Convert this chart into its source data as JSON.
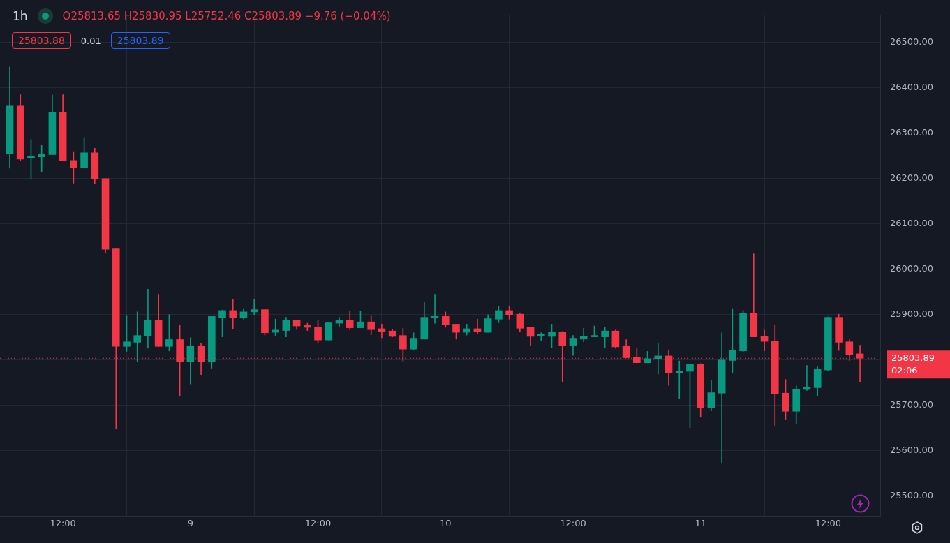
{
  "chart_data": {
    "type": "candlestick",
    "title": "1h",
    "subtitle": "O25813.65 H25830.95 L25752.46 C25803.89 −9.76 (−0.04%)",
    "annotations": [
      "25803.88",
      "0.01",
      "25803.89",
      "02:06"
    ],
    "categories": [
      null,
      null,
      null,
      null,
      null,
      "12:00",
      null,
      null,
      null,
      null,
      null,
      null,
      null,
      null,
      null,
      null,
      null,
      "9",
      null,
      null,
      null,
      null,
      null,
      null,
      null,
      null,
      null,
      null,
      null,
      "12:00",
      null,
      null,
      null,
      null,
      null,
      null,
      null,
      null,
      null,
      null,
      null,
      "10",
      null,
      null,
      null,
      null,
      null,
      null,
      null,
      null,
      null,
      null,
      null,
      "12:00",
      null,
      null,
      null,
      null,
      null,
      null,
      null,
      null,
      null,
      null,
      null,
      "11",
      null,
      null,
      null,
      null,
      null,
      null,
      null,
      null,
      null,
      null,
      null,
      "12:00",
      null,
      null,
      null
    ],
    "ohlc": [
      [
        26254,
        26446,
        26223,
        26360
      ],
      [
        26360,
        26385,
        26239,
        26243
      ],
      [
        26245,
        26286,
        26199,
        26249
      ],
      [
        26248,
        26273,
        26215,
        26254
      ],
      [
        26253,
        26384,
        26253,
        26346
      ],
      [
        26346,
        26385,
        26239,
        26239
      ],
      [
        26240,
        26258,
        26190,
        26224
      ],
      [
        26224,
        26289,
        26224,
        26257
      ],
      [
        26257,
        26267,
        26189,
        26199
      ],
      [
        26200,
        26200,
        26037,
        26044
      ],
      [
        26045,
        26045,
        25649,
        25830
      ],
      [
        25830,
        25897,
        25819,
        25840
      ],
      [
        25839,
        25906,
        25796,
        25854
      ],
      [
        25853,
        25956,
        25826,
        25888
      ],
      [
        25888,
        25945,
        25830,
        25830
      ],
      [
        25830,
        25900,
        25820,
        25845
      ],
      [
        25845,
        25877,
        25721,
        25796
      ],
      [
        25796,
        25849,
        25747,
        25830
      ],
      [
        25830,
        25836,
        25767,
        25797
      ],
      [
        25797,
        25896,
        25782,
        25896
      ],
      [
        25894,
        25910,
        25851,
        25909
      ],
      [
        25909,
        25933,
        25869,
        25893
      ],
      [
        25893,
        25912,
        25890,
        25906
      ],
      [
        25906,
        25934,
        25899,
        25911
      ],
      [
        25911,
        25911,
        25855,
        25860
      ],
      [
        25861,
        25890,
        25853,
        25866
      ],
      [
        25865,
        25894,
        25851,
        25888
      ],
      [
        25888,
        25888,
        25867,
        25875
      ],
      [
        25876,
        25881,
        25865,
        25872
      ],
      [
        25873,
        25888,
        25837,
        25844
      ],
      [
        25844,
        25882,
        25844,
        25882
      ],
      [
        25881,
        25894,
        25874,
        25887
      ],
      [
        25887,
        25907,
        25867,
        25871
      ],
      [
        25871,
        25907,
        25871,
        25884
      ],
      [
        25884,
        25897,
        25856,
        25867
      ],
      [
        25869,
        25879,
        25849,
        25863
      ],
      [
        25864,
        25867,
        25851,
        25852
      ],
      [
        25854,
        25870,
        25798,
        25824
      ],
      [
        25824,
        25860,
        25822,
        25848
      ],
      [
        25846,
        25928,
        25846,
        25894
      ],
      [
        25893,
        25945,
        25881,
        25896
      ],
      [
        25896,
        25906,
        25872,
        25878
      ],
      [
        25879,
        25879,
        25846,
        25861
      ],
      [
        25861,
        25879,
        25855,
        25869
      ],
      [
        25869,
        25890,
        25858,
        25863
      ],
      [
        25861,
        25900,
        25861,
        25891
      ],
      [
        25890,
        25919,
        25882,
        25909
      ],
      [
        25909,
        25918,
        25890,
        25900
      ],
      [
        25901,
        25903,
        25863,
        25870
      ],
      [
        25872,
        25872,
        25831,
        25852
      ],
      [
        25853,
        25860,
        25843,
        25854
      ],
      [
        25852,
        25879,
        25827,
        25861
      ],
      [
        25861,
        25863,
        25751,
        25831
      ],
      [
        25831,
        25854,
        25810,
        25848
      ],
      [
        25846,
        25870,
        25840,
        25852
      ],
      [
        25851,
        25875,
        25851,
        25852
      ],
      [
        25851,
        25873,
        25827,
        25864
      ],
      [
        25864,
        25866,
        25826,
        25829
      ],
      [
        25830,
        25845,
        25805,
        25805
      ],
      [
        25806,
        25825,
        25794,
        25794
      ],
      [
        25794,
        25819,
        25794,
        25803
      ],
      [
        25802,
        25836,
        25769,
        25809
      ],
      [
        25809,
        25822,
        25744,
        25772
      ],
      [
        25772,
        25798,
        25714,
        25776
      ],
      [
        25775,
        25791,
        25651,
        25791
      ],
      [
        25791,
        25792,
        25674,
        25694
      ],
      [
        25694,
        25755,
        25688,
        25728
      ],
      [
        25727,
        25860,
        25572,
        25800
      ],
      [
        25799,
        25912,
        25772,
        25821
      ],
      [
        25820,
        25909,
        25817,
        25903
      ],
      [
        25903,
        26034,
        25851,
        25851
      ],
      [
        25852,
        25866,
        25820,
        25841
      ],
      [
        25842,
        25878,
        25654,
        25726
      ],
      [
        25727,
        25757,
        25668,
        25687
      ],
      [
        25687,
        25743,
        25660,
        25736
      ],
      [
        25735,
        25788,
        25733,
        25740
      ],
      [
        25739,
        25785,
        25721,
        25779
      ],
      [
        25778,
        25895,
        25777,
        25894
      ],
      [
        25894,
        25901,
        25821,
        25839
      ],
      [
        25840,
        25845,
        25799,
        25812
      ],
      [
        25813.65,
        25830.95,
        25752.46,
        25803.89
      ]
    ],
    "colors": [
      "#089981",
      "#f23645",
      "#089981",
      "#089981",
      "#089981",
      "#f23645",
      "#f23645",
      "#089981",
      "#f23645",
      "#f23645",
      "#f23645",
      "#089981",
      "#089981",
      "#089981",
      "#f23645",
      "#089981",
      "#f23645",
      "#089981",
      "#f23645",
      "#089981",
      "#089981",
      "#f23645",
      "#089981",
      "#089981",
      "#f23645",
      "#089981",
      "#089981",
      "#f23645",
      "#f23645",
      "#f23645",
      "#089981",
      "#089981",
      "#f23645",
      "#089981",
      "#f23645",
      "#f23645",
      "#f23645",
      "#f23645",
      "#089981",
      "#089981",
      "#089981",
      "#f23645",
      "#f23645",
      "#089981",
      "#f23645",
      "#089981",
      "#089981",
      "#f23645",
      "#f23645",
      "#f23645",
      "#089981",
      "#089981",
      "#f23645",
      "#089981",
      "#089981",
      "#089981",
      "#089981",
      "#f23645",
      "#f23645",
      "#f23645",
      "#089981",
      "#089981",
      "#f23645",
      "#089981",
      "#089981",
      "#f23645",
      "#089981",
      "#089981",
      "#089981",
      "#089981",
      "#f23645",
      "#f23645",
      "#f23645",
      "#f23645",
      "#089981",
      "#089981",
      "#089981",
      "#089981",
      "#f23645",
      "#f23645",
      "#f23645"
    ],
    "ylim": [
      25455,
      26560
    ],
    "yticks": [
      {
        "value": 25500,
        "label": "25500.00"
      },
      {
        "value": 25600,
        "label": "25600.00"
      },
      {
        "value": 25700,
        "label": "25700.00"
      },
      {
        "value": 25800,
        "label": null
      },
      {
        "value": 25900,
        "label": "25900.00"
      },
      {
        "value": 26000,
        "label": "26000.00"
      },
      {
        "value": 26100,
        "label": "26100.00"
      },
      {
        "value": 26200,
        "label": "26200.00"
      },
      {
        "value": 26300,
        "label": "26300.00"
      },
      {
        "value": 26400,
        "label": "26400.00"
      },
      {
        "value": 26500,
        "label": "26500.00"
      }
    ],
    "ref_lines": [
      {
        "axis": "y",
        "value": 25803.89,
        "label": "25803.89",
        "color": "#f23645",
        "line_style": "dotted"
      }
    ],
    "grid": true
  }
}
